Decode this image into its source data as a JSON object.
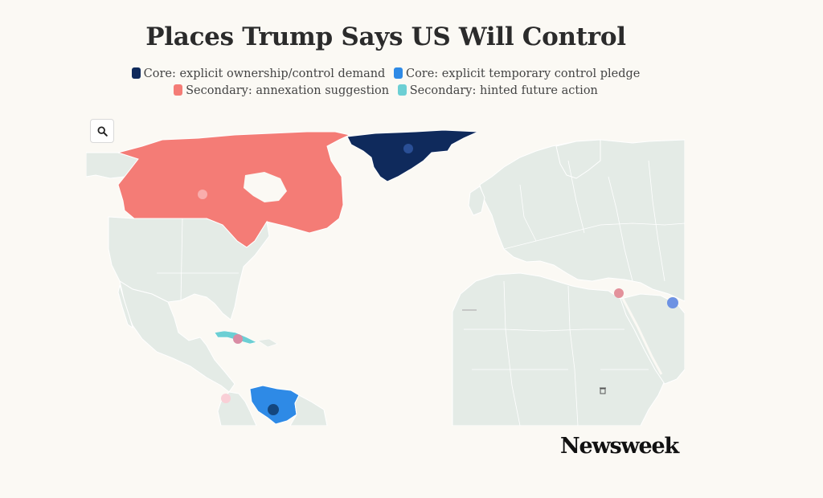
{
  "title": "Places Trump Says US Will Control",
  "legend": [
    {
      "label": "Core: explicit ownership/control demand",
      "color": "#0f2a5c"
    },
    {
      "label": "Core: explicit temporary control pledge",
      "color": "#2e8ae6"
    },
    {
      "label": "Secondary: annexation suggestion",
      "color": "#f47c76"
    },
    {
      "label": "Secondary: hinted future action",
      "color": "#6ccfd4"
    }
  ],
  "zoom_button": {
    "icon": "magnifier-icon"
  },
  "brand": "Newsweek",
  "colors": {
    "land": "#e4ebe6",
    "ocean": "#fbf9f4",
    "border": "#ffffff"
  },
  "regions": [
    {
      "name": "Greenland",
      "category": "Core: explicit ownership/control demand"
    },
    {
      "name": "Venezuela",
      "category": "Core: explicit temporary control pledge"
    },
    {
      "name": "Canada",
      "category": "Secondary: annexation suggestion"
    },
    {
      "name": "Cuba",
      "category": "Secondary: hinted future action"
    }
  ]
}
